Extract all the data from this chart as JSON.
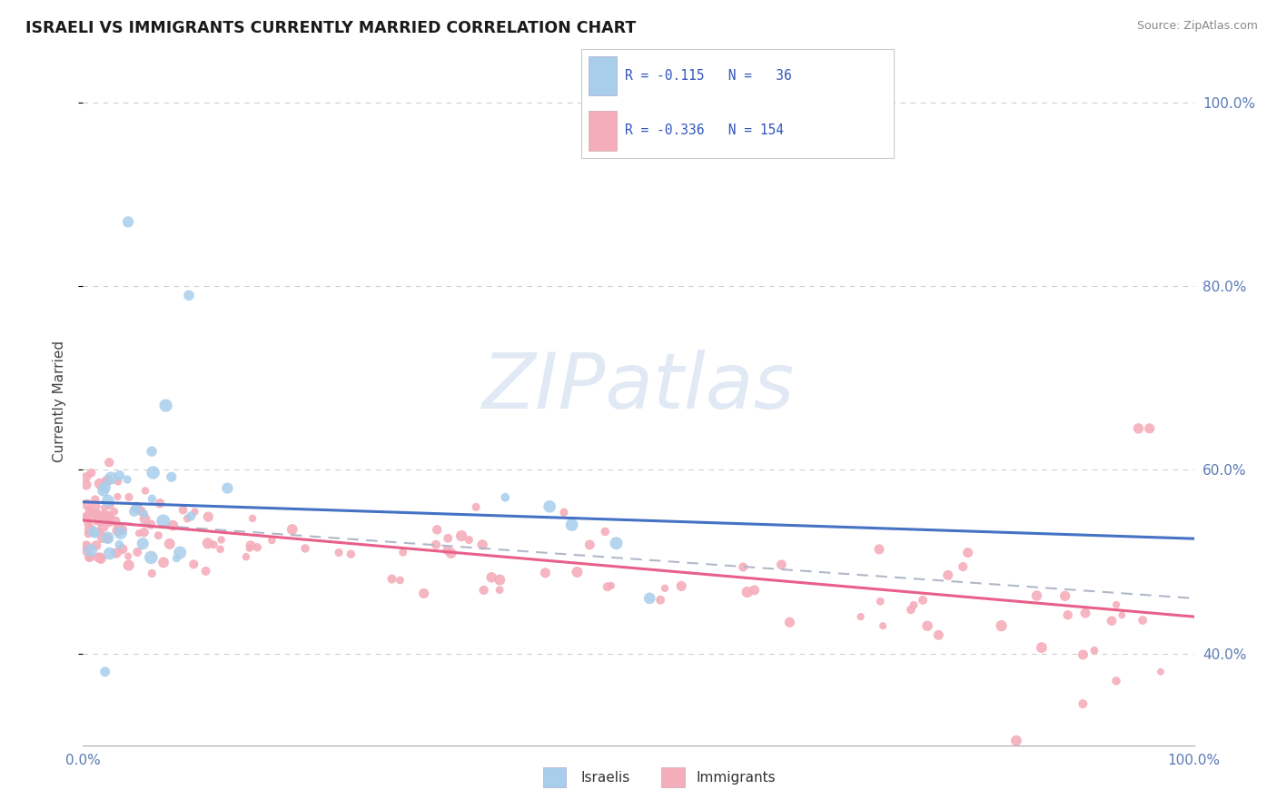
{
  "title": "ISRAELI VS IMMIGRANTS CURRENTLY MARRIED CORRELATION CHART",
  "source": "Source: ZipAtlas.com",
  "ylabel": "Currently Married",
  "xlim": [
    0.0,
    1.0
  ],
  "ylim": [
    0.3,
    1.05
  ],
  "y_ticks": [
    0.4,
    0.6,
    0.8,
    1.0
  ],
  "y_tick_labels": [
    "40.0%",
    "60.0%",
    "80.0%",
    "100.0%"
  ],
  "x_tick_labels": [
    "0.0%",
    "100.0%"
  ],
  "grid_color": "#d0d0d0",
  "background_color": "#ffffff",
  "blue_color": "#A8CEEB",
  "pink_color": "#F4ADBB",
  "blue_line_color": "#4472C4",
  "pink_line_color": "#E8608A",
  "dashed_line_color": "#b0b8c8",
  "tick_color": "#5a7ab5",
  "legend_text_color": "#3355bb",
  "legend_r1": "R = -0.115",
  "legend_n1": "N =  36",
  "legend_r2": "R = -0.336",
  "legend_n2": "N = 154",
  "watermark_color": "#c8d8ec",
  "watermark_text": "ZIPatlas",
  "isr_trend_start": 0.565,
  "isr_trend_end": 0.525,
  "imm_trend_start": 0.545,
  "imm_trend_end": 0.44,
  "dash_trend_start": 0.545,
  "dash_trend_end": 0.46
}
